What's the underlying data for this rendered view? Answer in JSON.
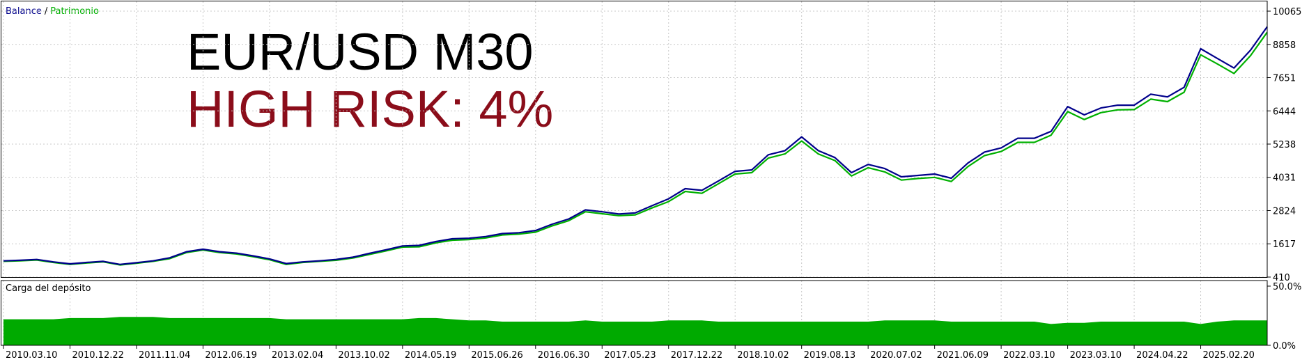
{
  "chart_data": [
    {
      "type": "line",
      "title": "EUR/USD M30",
      "subtitle": "HIGH RISK: 4%",
      "legend_separator": "/",
      "categories": [
        "2010.03.10",
        null,
        null,
        null,
        "2010.12.22",
        null,
        null,
        null,
        "2011.11.04",
        null,
        null,
        null,
        "2012.06.19",
        null,
        null,
        null,
        "2013.02.04",
        null,
        null,
        null,
        "2013.10.02",
        null,
        null,
        null,
        "2014.05.19",
        null,
        null,
        null,
        "2015.06.26",
        null,
        null,
        null,
        "2016.06.30",
        null,
        null,
        null,
        "2017.05.23",
        null,
        null,
        null,
        "2017.12.22",
        null,
        null,
        null,
        "2018.10.02",
        null,
        null,
        null,
        "2019.08.13",
        null,
        null,
        null,
        "2020.07.02",
        null,
        null,
        null,
        "2021.06.09",
        null,
        null,
        null,
        "2022.03.10",
        null,
        null,
        null,
        "2023.03.10",
        null,
        null,
        null,
        "2024.04.22",
        null,
        null,
        null,
        "2025.02.20",
        null,
        null,
        null,
        null
      ],
      "series": [
        {
          "name": "Patrimonio",
          "color": "#00b000",
          "values": [
            980,
            1000,
            1030,
            940,
            870,
            920,
            960,
            850,
            910,
            980,
            1080,
            1300,
            1390,
            1300,
            1250,
            1150,
            1040,
            870,
            940,
            980,
            1020,
            1100,
            1230,
            1360,
            1500,
            1510,
            1650,
            1750,
            1770,
            1830,
            1940,
            1970,
            2040,
            2270,
            2460,
            2780,
            2710,
            2640,
            2670,
            2920,
            3150,
            3520,
            3450,
            3800,
            4150,
            4200,
            4730,
            4880,
            5350,
            4880,
            4640,
            4080,
            4380,
            4230,
            3930,
            3990,
            4030,
            3880,
            4420,
            4820,
            4970,
            5300,
            5300,
            5560,
            6420,
            6130,
            6380,
            6480,
            6490,
            6870,
            6780,
            7120,
            8480,
            8150,
            7800,
            8450,
            9300
          ]
        },
        {
          "name": "Balance",
          "color": "#00008b",
          "values": [
            1000,
            1020,
            1050,
            960,
            890,
            940,
            980,
            870,
            930,
            1000,
            1110,
            1330,
            1420,
            1330,
            1280,
            1180,
            1070,
            900,
            960,
            1000,
            1050,
            1130,
            1270,
            1400,
            1540,
            1560,
            1700,
            1800,
            1820,
            1880,
            1990,
            2020,
            2100,
            2330,
            2520,
            2850,
            2780,
            2700,
            2740,
            3000,
            3250,
            3620,
            3560,
            3900,
            4250,
            4300,
            4850,
            5000,
            5500,
            5000,
            4750,
            4200,
            4500,
            4350,
            4050,
            4100,
            4150,
            4000,
            4550,
            4950,
            5100,
            5450,
            5450,
            5700,
            6600,
            6300,
            6550,
            6650,
            6650,
            7050,
            6950,
            7300,
            8700,
            8350,
            8000,
            8650,
            9500
          ]
        }
      ],
      "ylim": [
        410,
        10065
      ],
      "yticks": [
        410,
        1617,
        2824,
        4031,
        5238,
        6444,
        7651,
        8858,
        10065
      ],
      "grid": true
    },
    {
      "type": "area",
      "title": "Carga del depósito",
      "color": "#00aa00",
      "values": [
        22,
        22,
        22,
        22,
        23,
        23,
        23,
        24,
        24,
        24,
        23,
        23,
        23,
        23,
        23,
        23,
        23,
        22,
        22,
        22,
        22,
        22,
        22,
        22,
        22,
        23,
        23,
        22,
        21,
        21,
        20,
        20,
        20,
        20,
        20,
        21,
        20,
        20,
        20,
        20,
        21,
        21,
        21,
        20,
        20,
        20,
        20,
        20,
        20,
        20,
        20,
        20,
        20,
        21,
        21,
        21,
        21,
        20,
        20,
        20,
        20,
        20,
        20,
        18,
        19,
        19,
        20,
        20,
        20,
        20,
        20,
        20,
        18,
        20,
        21,
        21,
        21
      ],
      "ylim": [
        0,
        50
      ],
      "yticks": [
        {
          "value": 0,
          "label": "0.0%"
        },
        {
          "value": 50,
          "label": "50.0%"
        }
      ]
    }
  ]
}
